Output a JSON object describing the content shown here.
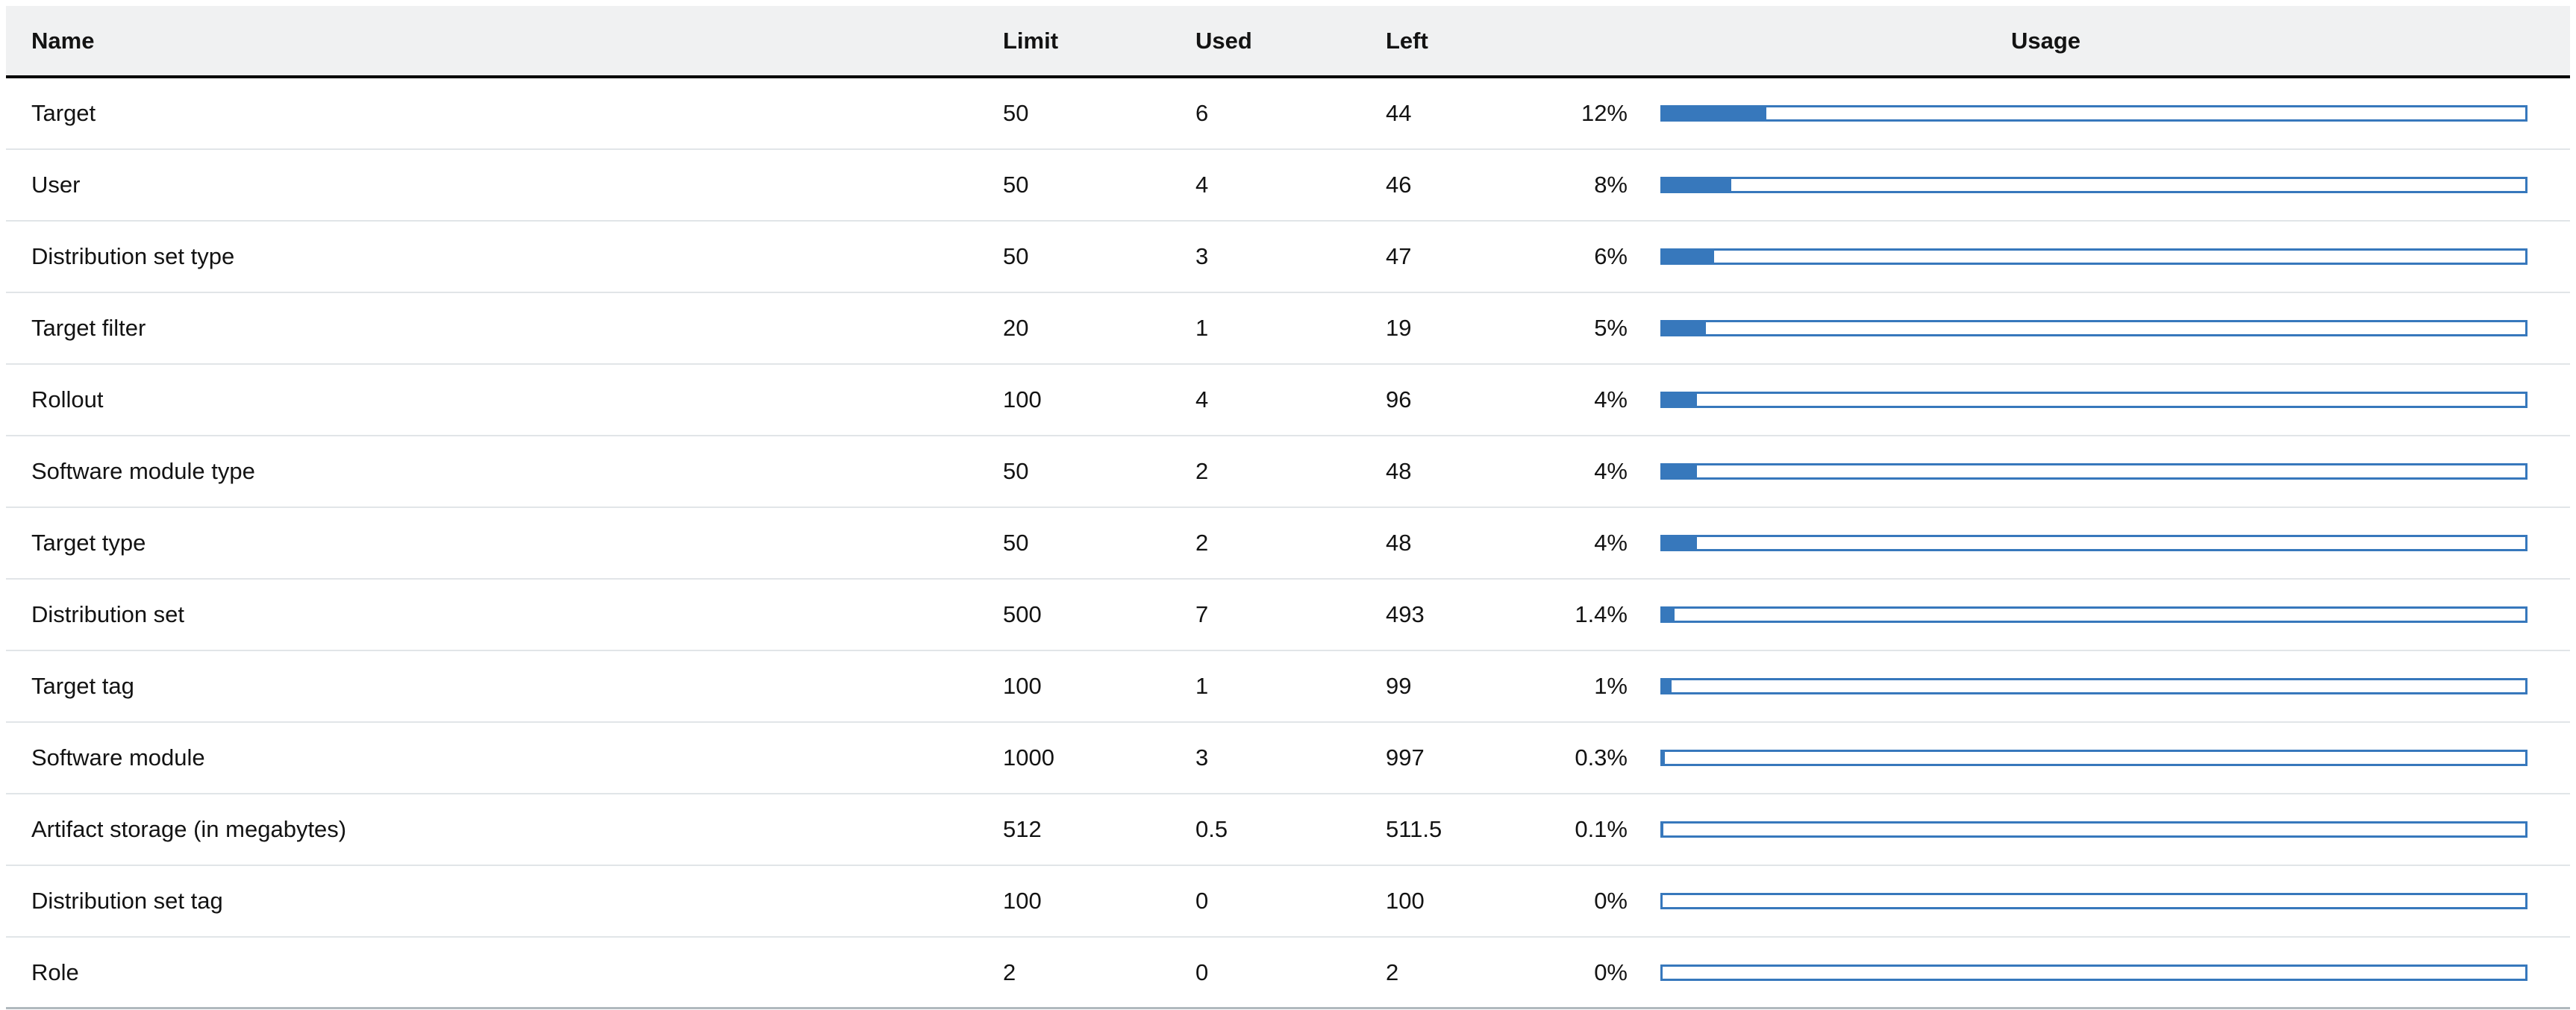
{
  "table": {
    "columns": {
      "name": "Name",
      "limit": "Limit",
      "used": "Used",
      "left": "Left",
      "usage": "Usage"
    },
    "rows": [
      {
        "name": "Target",
        "limit": "50",
        "used": "6",
        "left": "44",
        "percent_label": "12%",
        "percent_value": 12
      },
      {
        "name": "User",
        "limit": "50",
        "used": "4",
        "left": "46",
        "percent_label": "8%",
        "percent_value": 8
      },
      {
        "name": "Distribution set type",
        "limit": "50",
        "used": "3",
        "left": "47",
        "percent_label": "6%",
        "percent_value": 6
      },
      {
        "name": "Target filter",
        "limit": "20",
        "used": "1",
        "left": "19",
        "percent_label": "5%",
        "percent_value": 5
      },
      {
        "name": "Rollout",
        "limit": "100",
        "used": "4",
        "left": "96",
        "percent_label": "4%",
        "percent_value": 4
      },
      {
        "name": "Software module type",
        "limit": "50",
        "used": "2",
        "left": "48",
        "percent_label": "4%",
        "percent_value": 4
      },
      {
        "name": "Target type",
        "limit": "50",
        "used": "2",
        "left": "48",
        "percent_label": "4%",
        "percent_value": 4
      },
      {
        "name": "Distribution set",
        "limit": "500",
        "used": "7",
        "left": "493",
        "percent_label": "1.4%",
        "percent_value": 1.4
      },
      {
        "name": "Target tag",
        "limit": "100",
        "used": "1",
        "left": "99",
        "percent_label": "1%",
        "percent_value": 1
      },
      {
        "name": "Software module",
        "limit": "1000",
        "used": "3",
        "left": "997",
        "percent_label": "0.3%",
        "percent_value": 0.3
      },
      {
        "name": "Artifact storage (in megabytes)",
        "limit": "512",
        "used": "0.5",
        "left": "511.5",
        "percent_label": "0.1%",
        "percent_value": 0.1
      },
      {
        "name": "Distribution set tag",
        "limit": "100",
        "used": "0",
        "left": "100",
        "percent_label": "0%",
        "percent_value": 0
      },
      {
        "name": "Role",
        "limit": "2",
        "used": "0",
        "left": "2",
        "percent_label": "0%",
        "percent_value": 0
      }
    ]
  },
  "colors": {
    "accent_blue": "#3778bc",
    "header_background": "#f0f1f2",
    "row_separator": "#e1e5e8",
    "header_separator": "#000000",
    "table_bottom_border": "#b0b9be",
    "text": "#131313"
  }
}
